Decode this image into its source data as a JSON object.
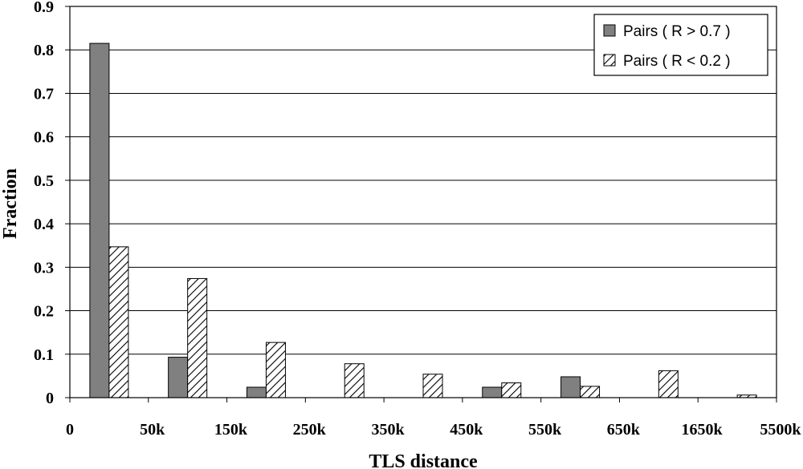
{
  "chart_data": {
    "type": "bar",
    "xlabel": "TLS distance",
    "ylabel": "Fraction",
    "ylim": [
      0,
      0.9
    ],
    "y_ticks": [
      "0",
      "0.1",
      "0.2",
      "0.3",
      "0.4",
      "0.5",
      "0.6",
      "0.7",
      "0.8",
      "0.9"
    ],
    "x_ticks": [
      "0",
      "50k",
      "150k",
      "250k",
      "350k",
      "450k",
      "550k",
      "650k",
      "1650k",
      "5500k"
    ],
    "categories": [
      "0-50k",
      "50k-150k",
      "150k-250k",
      "250k-350k",
      "350k-450k",
      "450k-550k",
      "550k-650k",
      "650k-1650k",
      "1650k-5500k"
    ],
    "grid": "horizontal",
    "legend_position": "top-right",
    "series": [
      {
        "name": "Pairs ( R > 0.7 )",
        "pattern": "solid-gray",
        "color": "#808080",
        "values": [
          0.815,
          0.093,
          0.024,
          0,
          0,
          0.024,
          0.048,
          0,
          0
        ]
      },
      {
        "name": "Pairs ( R < 0.2 )",
        "pattern": "diagonal-hatch",
        "color": "#000000",
        "values": [
          0.347,
          0.274,
          0.127,
          0.078,
          0.054,
          0.034,
          0.026,
          0.062,
          0.006
        ]
      }
    ]
  }
}
